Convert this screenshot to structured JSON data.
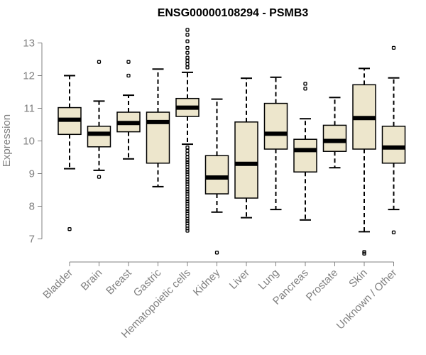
{
  "chart_data": {
    "type": "boxplot",
    "title": "ENSG00000108294 - PSMB3",
    "xlabel": "",
    "ylabel": "Expression",
    "ylim": [
      6.5,
      13.5
    ],
    "yticks": [
      7,
      8,
      9,
      10,
      11,
      12,
      13
    ],
    "box_color": "#ede6cc",
    "categories": [
      "Bladder",
      "Brain",
      "Breast",
      "Gastric",
      "Hematopoietic cells",
      "Kidney",
      "Liver",
      "Lung",
      "Pancreas",
      "Prostate",
      "Skin",
      "Unknown / Other"
    ],
    "boxes": [
      {
        "whislo": 9.15,
        "q1": 10.2,
        "med": 10.65,
        "q3": 11.02,
        "whishi": 12.0,
        "fliers": [
          7.3
        ]
      },
      {
        "whislo": 9.1,
        "q1": 9.82,
        "med": 10.22,
        "q3": 10.45,
        "whishi": 11.22,
        "fliers": [
          8.9,
          12.42
        ]
      },
      {
        "whislo": 9.45,
        "q1": 10.28,
        "med": 10.55,
        "q3": 10.88,
        "whishi": 11.4,
        "fliers": [
          12.0,
          12.42
        ]
      },
      {
        "whislo": 8.6,
        "q1": 9.32,
        "med": 10.58,
        "q3": 10.88,
        "whishi": 12.2,
        "fliers": []
      },
      {
        "whislo": 9.9,
        "q1": 10.75,
        "med": 11.02,
        "q3": 11.3,
        "whishi": 12.1,
        "fliers": [
          13.4,
          13.25,
          13.05,
          12.85,
          12.7,
          12.55,
          12.45,
          12.35,
          12.25,
          9.8,
          9.7,
          9.6,
          9.5,
          9.42,
          9.35,
          9.28,
          9.2,
          9.12,
          9.05,
          8.98,
          8.9,
          8.82,
          8.75,
          8.68,
          8.6,
          8.52,
          8.45,
          8.38,
          8.3,
          8.22,
          8.15,
          8.08,
          8.0,
          7.92,
          7.85,
          7.78,
          7.7,
          7.62,
          7.55,
          7.48,
          7.4,
          7.32,
          7.25
        ]
      },
      {
        "whislo": 7.82,
        "q1": 8.38,
        "med": 8.88,
        "q3": 9.55,
        "whishi": 11.28,
        "fliers": [
          6.58
        ]
      },
      {
        "whislo": 7.65,
        "q1": 8.25,
        "med": 9.3,
        "q3": 10.58,
        "whishi": 11.92,
        "fliers": []
      },
      {
        "whislo": 7.9,
        "q1": 9.75,
        "med": 10.22,
        "q3": 11.15,
        "whishi": 11.95,
        "fliers": []
      },
      {
        "whislo": 7.58,
        "q1": 9.05,
        "med": 9.72,
        "q3": 10.05,
        "whishi": 10.68,
        "fliers": [
          11.6,
          11.75
        ]
      },
      {
        "whislo": 9.18,
        "q1": 9.68,
        "med": 10.0,
        "q3": 10.48,
        "whishi": 11.33,
        "fliers": []
      },
      {
        "whislo": 7.22,
        "q1": 9.75,
        "med": 10.7,
        "q3": 11.72,
        "whishi": 12.22,
        "fliers": [
          6.55,
          6.6
        ]
      },
      {
        "whislo": 7.9,
        "q1": 9.32,
        "med": 9.8,
        "q3": 10.45,
        "whishi": 11.93,
        "fliers": [
          7.2,
          12.85
        ]
      }
    ]
  }
}
